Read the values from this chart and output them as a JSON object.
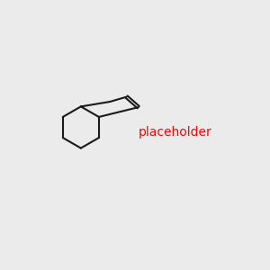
{
  "background_color": "#ebebeb",
  "bond_color": "#1a1a1a",
  "S_color": "#ccaa00",
  "N_color": "#0000ee",
  "O_color": "#dd0000",
  "H_color": "#558888",
  "lw": 1.5,
  "lw2": 2.5
}
